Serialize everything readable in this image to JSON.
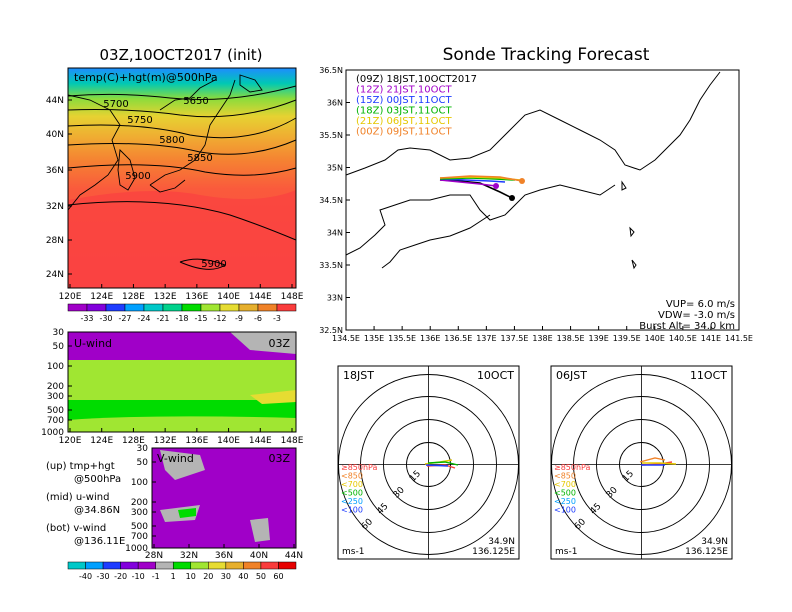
{
  "left_map": {
    "title": "03Z,10OCT2017 (init)",
    "label": "temp(C)+hgt(m)@500hPa",
    "lat_ticks": [
      "44N",
      "40N",
      "36N",
      "32N",
      "28N",
      "24N"
    ],
    "lon_ticks": [
      "120E",
      "124E",
      "128E",
      "132E",
      "136E",
      "140E",
      "144E",
      "148E"
    ],
    "contour_labels": [
      "5700",
      "5650",
      "5750",
      "5800",
      "5850",
      "5900",
      "5900"
    ],
    "colorbar": {
      "labels": [
        "-33",
        "-30",
        "-27",
        "-24",
        "-21",
        "-18",
        "-15",
        "-12",
        "-9",
        "-6",
        "-3"
      ],
      "colors": [
        "#a000c8",
        "#8200dc",
        "#1e3cff",
        "#00a0ff",
        "#00c8c8",
        "#00d28c",
        "#00dc00",
        "#a0e632",
        "#e6dc32",
        "#e6af2d",
        "#f08228",
        "#fa3c3c"
      ]
    }
  },
  "u_panel": {
    "label": "U-wind",
    "time": "03Z",
    "y_ticks": [
      "30",
      "50",
      "100",
      "200",
      "300",
      "500",
      "700",
      "1000"
    ],
    "x_ticks": [
      "120E",
      "124E",
      "128E",
      "132E",
      "136E",
      "140E",
      "144E",
      "148E"
    ]
  },
  "v_panel": {
    "label": "V-wind",
    "time": "03Z",
    "y_ticks": [
      "30",
      "50",
      "100",
      "200",
      "300",
      "500",
      "700",
      "1000"
    ],
    "x_ticks": [
      "28N",
      "32N",
      "36N",
      "40N",
      "44N"
    ]
  },
  "side_notes": {
    "up_line1": "(up)  tmp+hgt",
    "up_line2": "@500hPa",
    "mid_line1": "(mid)  u-wind",
    "mid_line2": "@34.86N",
    "bot_line1": "(bot)  v-wind",
    "bot_line2": "@136.11E"
  },
  "wind_colorbar": {
    "labels": [
      "-40",
      "-30",
      "-20",
      "-10",
      "-1",
      "1",
      "10",
      "20",
      "30",
      "40",
      "50",
      "60"
    ],
    "colors": [
      "#00c8c8",
      "#00a0ff",
      "#1e3cff",
      "#8200dc",
      "#a000c8",
      "#b4b4b4",
      "#00dc00",
      "#a0e632",
      "#e6dc32",
      "#e6af2d",
      "#f08228",
      "#fa3c3c",
      "#e60000"
    ]
  },
  "track": {
    "title": "Sonde Tracking Forecast",
    "lat_ticks": [
      "36.5N",
      "36N",
      "35.5N",
      "35N",
      "34.5N",
      "34N",
      "33.5N",
      "33N",
      "32.5N"
    ],
    "lon_ticks": [
      "134.5E",
      "135E",
      "135.5E",
      "136E",
      "136.5E",
      "137E",
      "137.5E",
      "138E",
      "138.5E",
      "139E",
      "139.5E",
      "140E",
      "140.5E",
      "141E",
      "141.5E"
    ],
    "legend": [
      {
        "text": "(09Z)  18JST,10OCT2017",
        "color": "#000000"
      },
      {
        "text": "(12Z)  21JST,10OCT",
        "color": "#a000c8"
      },
      {
        "text": "(15Z)  00JST,11OCT",
        "color": "#1e3cff"
      },
      {
        "text": "(18Z)  03JST,11OCT",
        "color": "#00b400"
      },
      {
        "text": "(21Z)  06JST,11OCT",
        "color": "#e6c800"
      },
      {
        "text": "(00Z)  09JST,11OCT",
        "color": "#f08228"
      }
    ],
    "params": [
      "VUP=  6.0  m/s",
      "VDW= -3.0  m/s",
      "Burst Alt=  34.0  km"
    ]
  },
  "hodo_left": {
    "time": "18JST",
    "date": "10OCT",
    "ring_labels": [
      "15",
      "30",
      "45",
      "60"
    ],
    "levels": [
      {
        "text": "≥850hPa",
        "color": "#fa3c3c"
      },
      {
        "text": "<850",
        "color": "#f08228"
      },
      {
        "text": "<700",
        "color": "#e6c800"
      },
      {
        "text": "<500",
        "color": "#00b400"
      },
      {
        "text": "<250",
        "color": "#00a0ff"
      },
      {
        "text": "<100",
        "color": "#1e3cff"
      }
    ],
    "units": "ms-1",
    "lat": "34.9N",
    "lon": "136.125E"
  },
  "hodo_right": {
    "time": "06JST",
    "date": "11OCT",
    "ring_labels": [
      "15",
      "30",
      "45",
      "60"
    ],
    "levels": [
      {
        "text": "≥850hPa",
        "color": "#fa3c3c"
      },
      {
        "text": "<850",
        "color": "#f08228"
      },
      {
        "text": "<700",
        "color": "#e6c800"
      },
      {
        "text": "<500",
        "color": "#00b400"
      },
      {
        "text": "<250",
        "color": "#00a0ff"
      },
      {
        "text": "<100",
        "color": "#1e3cff"
      }
    ],
    "units": "ms-1",
    "lat": "34.9N",
    "lon": "136.125E"
  }
}
